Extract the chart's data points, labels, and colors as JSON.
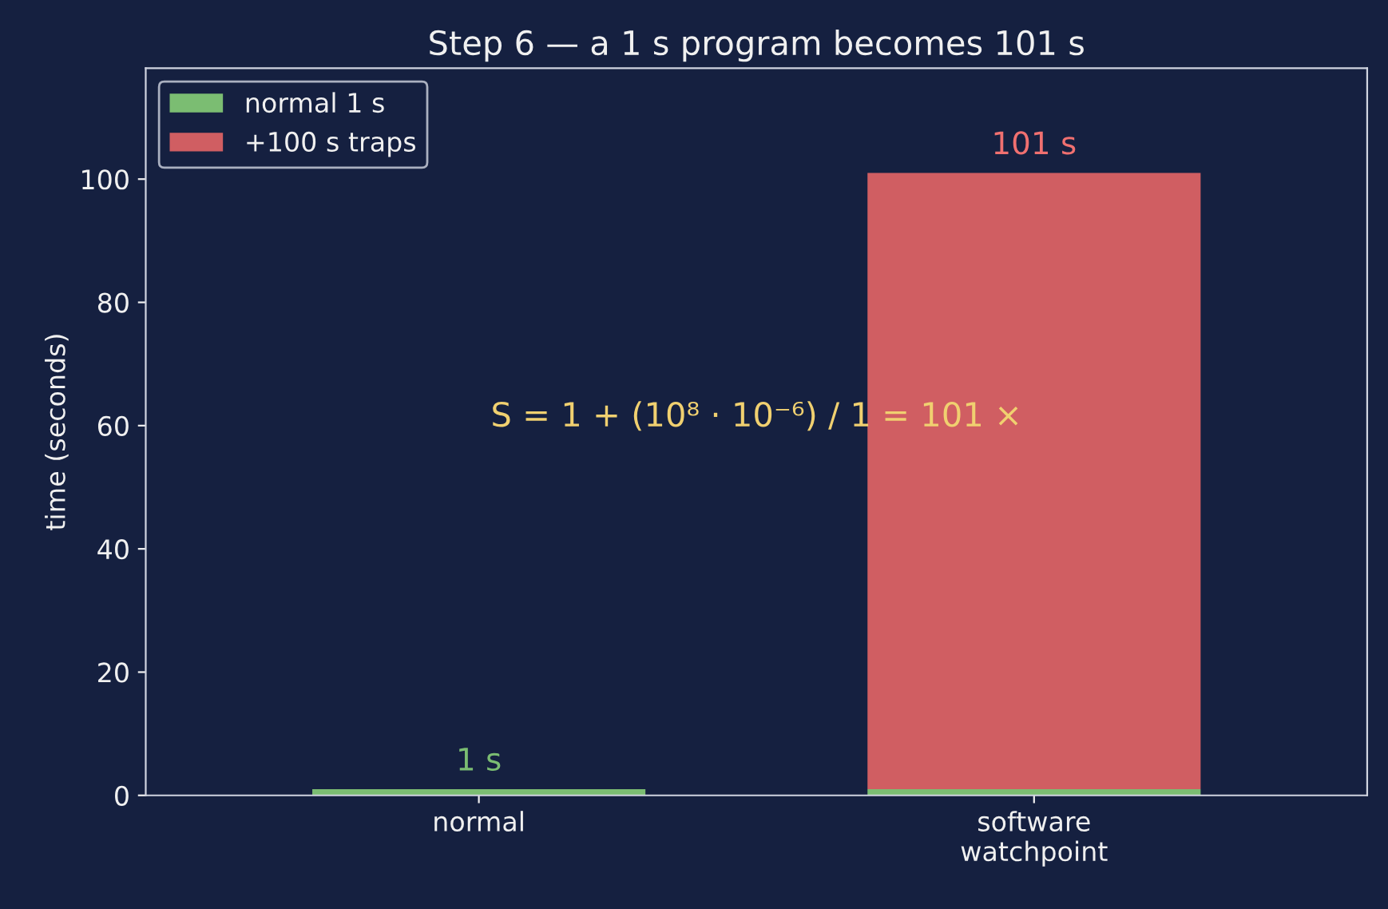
{
  "chart_data": {
    "type": "bar",
    "title": "Step 6 — a 1 s program becomes 101 s",
    "ylabel": "time (seconds)",
    "categories": [
      "normal",
      "software\nwatchpoint"
    ],
    "stacked": true,
    "series": [
      {
        "name": "normal 1 s",
        "color": "#7bbd72",
        "values": [
          1,
          1
        ]
      },
      {
        "name": "+100 s traps",
        "color": "#d05e62",
        "values": [
          0,
          100
        ]
      }
    ],
    "totals": [
      "1 s",
      "101 s"
    ],
    "annotations": [
      "S = 1 + (10⁸ · 10⁻⁶) / 1 = 101 ×"
    ],
    "ylim": [
      0,
      118
    ],
    "yticks": [
      0,
      20,
      40,
      60,
      80,
      100
    ],
    "grid": false,
    "legend": "top left"
  }
}
